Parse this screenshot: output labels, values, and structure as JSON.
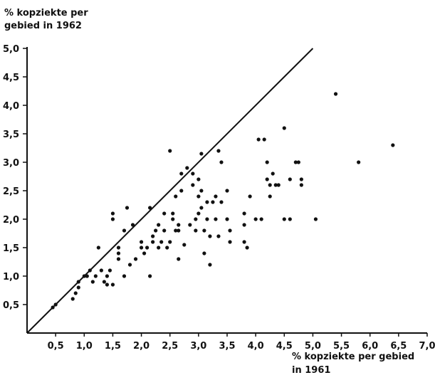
{
  "chart_data": {
    "type": "scatter",
    "title": "",
    "ylabel_lines": [
      "% kopziekte  per",
      "gebied in 1962"
    ],
    "xlabel_lines": [
      "% kopziekte  per gebied",
      "in  1961"
    ],
    "xlim": [
      0,
      7.0
    ],
    "ylim": [
      0,
      5.0
    ],
    "xticks": [
      "0,5",
      "1,0",
      "1,5",
      "2,0",
      "2,5",
      "3,0",
      "3,5",
      "4,0",
      "4,5",
      "5,0",
      "5,5",
      "6,0",
      "6,5",
      "7,0"
    ],
    "yticks": [
      "0,5",
      "1,0",
      "1,5",
      "2,0",
      "2,5",
      "3,0",
      "3,5",
      "4,0",
      "4,5",
      "5,0"
    ],
    "xtick_values": [
      0.5,
      1.0,
      1.5,
      2.0,
      2.5,
      3.0,
      3.5,
      4.0,
      4.5,
      5.0,
      5.5,
      6.0,
      6.5,
      7.0
    ],
    "ytick_values": [
      0.5,
      1.0,
      1.5,
      2.0,
      2.5,
      3.0,
      3.5,
      4.0,
      4.5,
      5.0
    ],
    "reference_line": {
      "from": [
        0,
        0
      ],
      "to": [
        5.0,
        5.0
      ]
    },
    "grid": false,
    "points": [
      [
        0.45,
        0.45
      ],
      [
        0.5,
        0.5
      ],
      [
        0.8,
        0.6
      ],
      [
        0.85,
        0.7
      ],
      [
        0.9,
        0.8
      ],
      [
        0.9,
        0.9
      ],
      [
        1.0,
        1.0
      ],
      [
        1.05,
        1.0
      ],
      [
        1.1,
        1.1
      ],
      [
        1.15,
        0.9
      ],
      [
        1.2,
        1.0
      ],
      [
        1.25,
        1.5
      ],
      [
        1.3,
        1.1
      ],
      [
        1.35,
        0.9
      ],
      [
        1.4,
        1.0
      ],
      [
        1.4,
        0.85
      ],
      [
        1.45,
        1.1
      ],
      [
        1.5,
        0.85
      ],
      [
        1.5,
        2.1
      ],
      [
        1.5,
        2.0
      ],
      [
        1.6,
        1.4
      ],
      [
        1.6,
        1.5
      ],
      [
        1.6,
        1.3
      ],
      [
        1.7,
        1.8
      ],
      [
        1.7,
        1.0
      ],
      [
        1.75,
        2.2
      ],
      [
        1.8,
        1.2
      ],
      [
        1.85,
        1.9
      ],
      [
        1.9,
        1.3
      ],
      [
        2.0,
        1.5
      ],
      [
        2.0,
        1.6
      ],
      [
        2.05,
        1.4
      ],
      [
        2.1,
        1.5
      ],
      [
        2.15,
        2.2
      ],
      [
        2.15,
        1.0
      ],
      [
        2.2,
        1.7
      ],
      [
        2.2,
        1.6
      ],
      [
        2.25,
        1.8
      ],
      [
        2.3,
        1.9
      ],
      [
        2.3,
        1.5
      ],
      [
        2.35,
        1.6
      ],
      [
        2.4,
        2.1
      ],
      [
        2.4,
        1.8
      ],
      [
        2.45,
        1.5
      ],
      [
        2.5,
        3.2
      ],
      [
        2.5,
        1.6
      ],
      [
        2.55,
        2.0
      ],
      [
        2.55,
        2.1
      ],
      [
        2.6,
        1.8
      ],
      [
        2.6,
        2.4
      ],
      [
        2.65,
        1.9
      ],
      [
        2.65,
        1.8
      ],
      [
        2.65,
        1.3
      ],
      [
        2.7,
        2.8
      ],
      [
        2.7,
        2.5
      ],
      [
        2.75,
        1.55
      ],
      [
        2.8,
        2.9
      ],
      [
        2.85,
        1.9
      ],
      [
        2.9,
        2.8
      ],
      [
        2.9,
        2.6
      ],
      [
        2.95,
        2.0
      ],
      [
        2.95,
        1.8
      ],
      [
        3.0,
        2.7
      ],
      [
        3.0,
        2.4
      ],
      [
        3.0,
        2.1
      ],
      [
        3.05,
        3.15
      ],
      [
        3.05,
        2.5
      ],
      [
        3.05,
        2.2
      ],
      [
        3.1,
        1.8
      ],
      [
        3.1,
        1.4
      ],
      [
        3.15,
        2.3
      ],
      [
        3.15,
        2.0
      ],
      [
        3.2,
        1.7
      ],
      [
        3.2,
        1.2
      ],
      [
        3.25,
        2.3
      ],
      [
        3.3,
        2.4
      ],
      [
        3.3,
        2.0
      ],
      [
        3.35,
        3.2
      ],
      [
        3.35,
        1.7
      ],
      [
        3.4,
        3.0
      ],
      [
        3.4,
        2.3
      ],
      [
        3.5,
        2.5
      ],
      [
        3.5,
        2.0
      ],
      [
        3.55,
        1.8
      ],
      [
        3.55,
        1.6
      ],
      [
        3.8,
        2.1
      ],
      [
        3.8,
        1.9
      ],
      [
        3.8,
        1.6
      ],
      [
        3.85,
        1.5
      ],
      [
        3.9,
        2.4
      ],
      [
        4.0,
        2.0
      ],
      [
        4.05,
        3.4
      ],
      [
        4.1,
        2.0
      ],
      [
        4.15,
        3.4
      ],
      [
        4.2,
        3.0
      ],
      [
        4.2,
        2.7
      ],
      [
        4.25,
        2.6
      ],
      [
        4.25,
        2.4
      ],
      [
        4.3,
        2.8
      ],
      [
        4.35,
        2.6
      ],
      [
        4.4,
        2.6
      ],
      [
        4.5,
        3.6
      ],
      [
        4.5,
        2.0
      ],
      [
        4.6,
        2.7
      ],
      [
        4.6,
        2.0
      ],
      [
        4.7,
        3.0
      ],
      [
        4.75,
        3.0
      ],
      [
        4.8,
        2.7
      ],
      [
        4.8,
        2.6
      ],
      [
        5.05,
        2.0
      ],
      [
        5.4,
        4.2
      ],
      [
        5.8,
        3.0
      ],
      [
        6.4,
        3.3
      ]
    ]
  }
}
